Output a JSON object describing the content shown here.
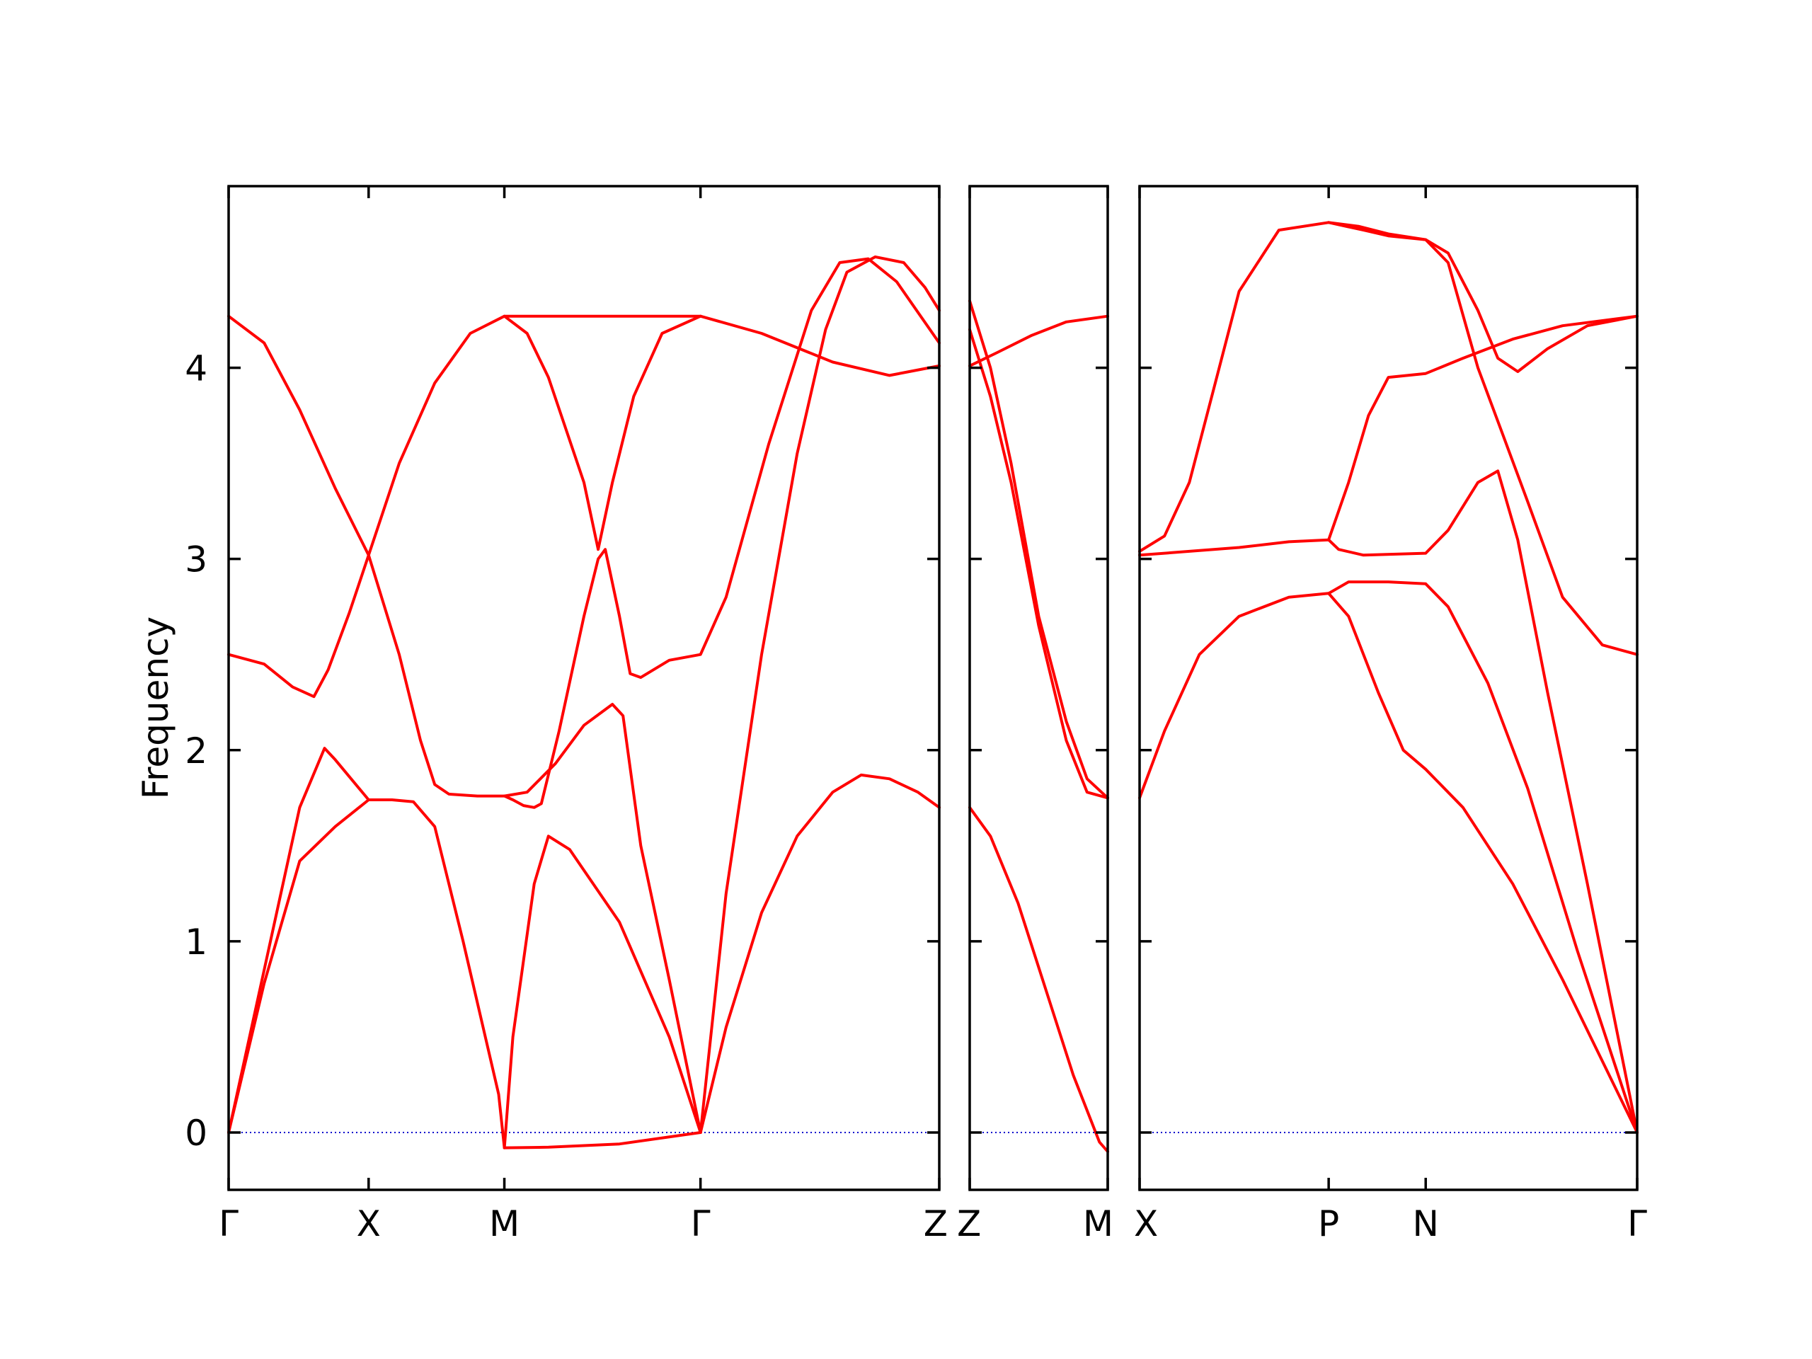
{
  "chart_data": {
    "type": "line",
    "ylabel": "Frequency",
    "ylim": [
      -0.3,
      4.95
    ],
    "yticks": [
      0,
      1,
      2,
      3,
      4
    ],
    "grid": false,
    "legend": "none",
    "colors": {
      "band": "#ff0000",
      "zero_line": "#0000cc",
      "axes": "#000000"
    },
    "zero_line": {
      "y": 0,
      "style": "dotted"
    },
    "panels": [
      {
        "id": "panel-1",
        "x_range": [
          0,
          1
        ],
        "ticks": [
          {
            "x": 0.0,
            "label": "Γ"
          },
          {
            "x": 0.197,
            "label": "X"
          },
          {
            "x": 0.388,
            "label": "M"
          },
          {
            "x": 0.664,
            "label": "Γ"
          },
          {
            "x": 1.0,
            "label": "Z"
          }
        ],
        "bands": [
          [
            [
              0,
              0
            ],
            [
              0.05,
              0.78
            ],
            [
              0.1,
              1.42
            ],
            [
              0.15,
              1.6
            ],
            [
              0.197,
              1.74
            ],
            [
              0.23,
              1.74
            ],
            [
              0.26,
              1.73
            ],
            [
              0.29,
              1.6
            ],
            [
              0.33,
              1.0
            ],
            [
              0.38,
              0.2
            ],
            [
              0.388,
              -0.08
            ],
            [
              0.45,
              -0.077
            ],
            [
              0.55,
              -0.06
            ],
            [
              0.664,
              0
            ]
          ],
          [
            [
              0,
              0
            ],
            [
              0.05,
              0.85
            ],
            [
              0.1,
              1.7
            ],
            [
              0.135,
              2.01
            ],
            [
              0.15,
              1.95
            ],
            [
              0.197,
              1.74
            ]
          ],
          [
            [
              0,
              2.5
            ],
            [
              0.05,
              2.45
            ],
            [
              0.09,
              2.33
            ],
            [
              0.12,
              2.28
            ],
            [
              0.14,
              2.42
            ],
            [
              0.17,
              2.72
            ],
            [
              0.197,
              3.02
            ],
            [
              0.24,
              3.5
            ],
            [
              0.29,
              3.92
            ],
            [
              0.34,
              4.18
            ],
            [
              0.388,
              4.27
            ],
            [
              0.5,
              4.27
            ],
            [
              0.664,
              4.27
            ],
            [
              0.75,
              4.18
            ],
            [
              0.85,
              4.03
            ],
            [
              0.93,
              3.96
            ],
            [
              1.0,
              4.01
            ]
          ],
          [
            [
              0,
              4.27
            ],
            [
              0.05,
              4.13
            ],
            [
              0.1,
              3.78
            ],
            [
              0.15,
              3.37
            ],
            [
              0.197,
              3.02
            ],
            [
              0.24,
              2.5
            ],
            [
              0.27,
              2.05
            ],
            [
              0.29,
              1.82
            ],
            [
              0.31,
              1.77
            ],
            [
              0.35,
              1.76
            ],
            [
              0.388,
              1.76
            ],
            [
              0.42,
              1.78
            ],
            [
              0.46,
              1.93
            ],
            [
              0.5,
              2.13
            ],
            [
              0.54,
              2.24
            ],
            [
              0.555,
              2.18
            ],
            [
              0.58,
              1.5
            ],
            [
              0.62,
              0.8
            ],
            [
              0.664,
              0
            ]
          ],
          [
            [
              0.388,
              1.76
            ],
            [
              0.4,
              1.74
            ],
            [
              0.415,
              1.71
            ],
            [
              0.43,
              1.7
            ],
            [
              0.44,
              1.72
            ],
            [
              0.465,
              2.1
            ],
            [
              0.5,
              2.7
            ],
            [
              0.52,
              3.0
            ],
            [
              0.53,
              3.05
            ],
            [
              0.55,
              2.7
            ],
            [
              0.565,
              2.4
            ],
            [
              0.58,
              2.38
            ],
            [
              0.62,
              2.47
            ],
            [
              0.664,
              2.5
            ],
            [
              0.7,
              2.8
            ],
            [
              0.76,
              3.6
            ],
            [
              0.82,
              4.3
            ],
            [
              0.86,
              4.55
            ],
            [
              0.9,
              4.57
            ],
            [
              0.94,
              4.45
            ],
            [
              1.0,
              4.13
            ]
          ],
          [
            [
              0.388,
              -0.08
            ],
            [
              0.4,
              0.5
            ],
            [
              0.43,
              1.3
            ],
            [
              0.45,
              1.55
            ],
            [
              0.48,
              1.48
            ],
            [
              0.55,
              1.1
            ],
            [
              0.62,
              0.5
            ],
            [
              0.664,
              0
            ]
          ],
          [
            [
              0.388,
              4.27
            ],
            [
              0.42,
              4.18
            ],
            [
              0.45,
              3.95
            ],
            [
              0.5,
              3.4
            ],
            [
              0.52,
              3.05
            ],
            [
              0.54,
              3.4
            ],
            [
              0.57,
              3.85
            ],
            [
              0.61,
              4.18
            ],
            [
              0.664,
              4.27
            ]
          ],
          [
            [
              0.664,
              0
            ],
            [
              0.7,
              0.55
            ],
            [
              0.75,
              1.15
            ],
            [
              0.8,
              1.55
            ],
            [
              0.85,
              1.78
            ],
            [
              0.89,
              1.87
            ],
            [
              0.93,
              1.85
            ],
            [
              0.97,
              1.78
            ],
            [
              1.0,
              1.7
            ]
          ],
          [
            [
              0.664,
              0
            ],
            [
              0.7,
              1.25
            ],
            [
              0.75,
              2.5
            ],
            [
              0.8,
              3.55
            ],
            [
              0.84,
              4.2
            ],
            [
              0.87,
              4.5
            ],
            [
              0.91,
              4.58
            ],
            [
              0.95,
              4.55
            ],
            [
              0.98,
              4.42
            ],
            [
              1.0,
              4.3
            ]
          ]
        ]
      },
      {
        "id": "panel-2",
        "x_range": [
          0,
          1
        ],
        "ticks": [
          {
            "x": 0.0,
            "label": "Z"
          },
          {
            "x": 1.0,
            "label": "M"
          }
        ],
        "bands": [
          [
            [
              0,
              1.7
            ],
            [
              0.15,
              1.55
            ],
            [
              0.35,
              1.2
            ],
            [
              0.55,
              0.75
            ],
            [
              0.75,
              0.3
            ],
            [
              0.94,
              -0.05
            ],
            [
              1.0,
              -0.1
            ]
          ],
          [
            [
              0,
              4.01
            ],
            [
              0.2,
              4.08
            ],
            [
              0.45,
              4.17
            ],
            [
              0.7,
              4.24
            ],
            [
              1.0,
              4.27
            ]
          ],
          [
            [
              0,
              4.35
            ],
            [
              0.15,
              4.0
            ],
            [
              0.3,
              3.5
            ],
            [
              0.5,
              2.7
            ],
            [
              0.7,
              2.15
            ],
            [
              0.85,
              1.85
            ],
            [
              1.0,
              1.75
            ]
          ],
          [
            [
              0,
              4.2
            ],
            [
              0.15,
              3.85
            ],
            [
              0.3,
              3.4
            ],
            [
              0.5,
              2.65
            ],
            [
              0.7,
              2.05
            ],
            [
              0.85,
              1.78
            ],
            [
              1.0,
              1.75
            ]
          ]
        ]
      },
      {
        "id": "panel-3",
        "x_range": [
          0,
          1
        ],
        "ticks": [
          {
            "x": 0.0,
            "label": "X"
          },
          {
            "x": 0.38,
            "label": "P"
          },
          {
            "x": 0.575,
            "label": "N"
          },
          {
            "x": 1.0,
            "label": "Γ"
          }
        ],
        "bands": [
          [
            [
              0,
              1.75
            ],
            [
              0.05,
              2.1
            ],
            [
              0.12,
              2.5
            ],
            [
              0.2,
              2.7
            ],
            [
              0.3,
              2.8
            ],
            [
              0.38,
              2.82
            ],
            [
              0.42,
              2.7
            ],
            [
              0.48,
              2.3
            ],
            [
              0.53,
              2.0
            ],
            [
              0.575,
              1.9
            ],
            [
              0.65,
              1.7
            ],
            [
              0.75,
              1.3
            ],
            [
              0.85,
              0.8
            ],
            [
              1.0,
              0
            ]
          ],
          [
            [
              0,
              3.02
            ],
            [
              0.1,
              3.04
            ],
            [
              0.2,
              3.06
            ],
            [
              0.3,
              3.09
            ],
            [
              0.38,
              3.1
            ],
            [
              0.4,
              3.05
            ],
            [
              0.45,
              3.02
            ],
            [
              0.575,
              3.03
            ],
            [
              0.62,
              3.15
            ],
            [
              0.68,
              3.4
            ],
            [
              0.72,
              3.46
            ],
            [
              0.76,
              3.1
            ],
            [
              0.82,
              2.3
            ],
            [
              0.9,
              1.3
            ],
            [
              1.0,
              0
            ]
          ],
          [
            [
              0,
              3.04
            ],
            [
              0.05,
              3.12
            ],
            [
              0.1,
              3.4
            ],
            [
              0.15,
              3.9
            ],
            [
              0.2,
              4.4
            ],
            [
              0.28,
              4.72
            ],
            [
              0.38,
              4.76
            ],
            [
              0.44,
              4.74
            ],
            [
              0.5,
              4.7
            ],
            [
              0.575,
              4.67
            ],
            [
              0.62,
              4.55
            ],
            [
              0.68,
              4.0
            ],
            [
              0.73,
              3.65
            ],
            [
              0.78,
              3.3
            ],
            [
              0.85,
              2.8
            ],
            [
              0.93,
              2.55
            ],
            [
              1.0,
              2.5
            ]
          ],
          [
            [
              0.38,
              4.76
            ],
            [
              0.45,
              4.72
            ],
            [
              0.5,
              4.69
            ],
            [
              0.575,
              4.67
            ],
            [
              0.62,
              4.6
            ],
            [
              0.68,
              4.3
            ],
            [
              0.72,
              4.05
            ],
            [
              0.76,
              3.98
            ],
            [
              0.82,
              4.1
            ],
            [
              0.9,
              4.22
            ],
            [
              1.0,
              4.27
            ]
          ],
          [
            [
              0.38,
              3.1
            ],
            [
              0.42,
              3.4
            ],
            [
              0.46,
              3.75
            ],
            [
              0.5,
              3.95
            ],
            [
              0.575,
              3.97
            ],
            [
              0.65,
              4.05
            ],
            [
              0.75,
              4.15
            ],
            [
              0.85,
              4.22
            ],
            [
              1.0,
              4.27
            ]
          ],
          [
            [
              0.38,
              2.82
            ],
            [
              0.42,
              2.88
            ],
            [
              0.5,
              2.88
            ],
            [
              0.575,
              2.87
            ],
            [
              0.62,
              2.75
            ],
            [
              0.7,
              2.35
            ],
            [
              0.78,
              1.8
            ],
            [
              0.88,
              0.95
            ],
            [
              1.0,
              0
            ]
          ]
        ]
      }
    ]
  }
}
